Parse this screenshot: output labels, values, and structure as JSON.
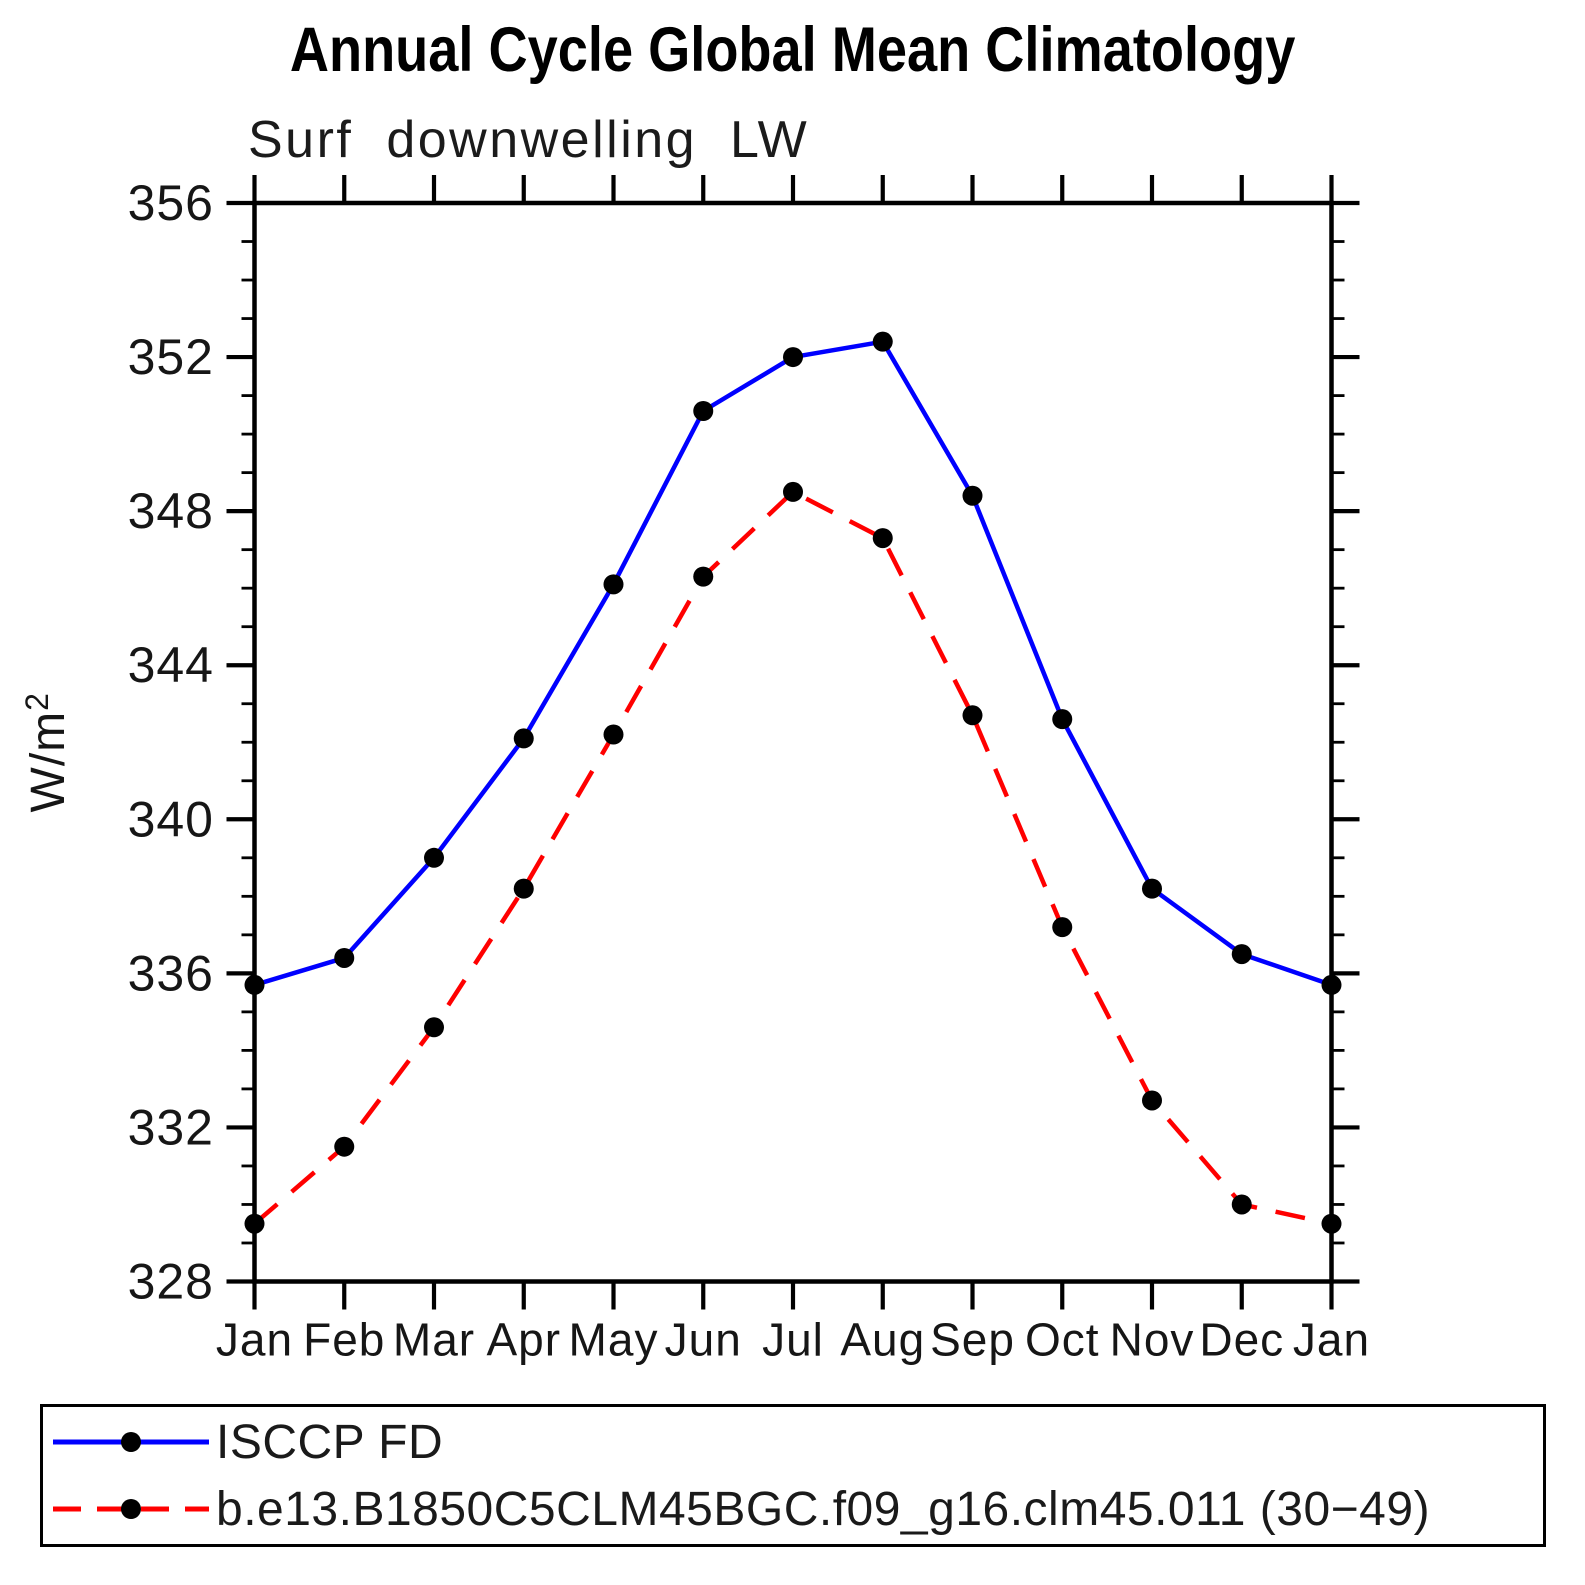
{
  "chart_data": {
    "type": "line",
    "title": "Annual Cycle Global Mean Climatology",
    "subtitle": "Surf downwelling LW",
    "ylabel": "W/m²",
    "categories": [
      "Jan",
      "Feb",
      "Mar",
      "Apr",
      "May",
      "Jun",
      "Jul",
      "Aug",
      "Sep",
      "Oct",
      "Nov",
      "Dec",
      "Jan"
    ],
    "ylim": [
      328,
      356
    ],
    "ytick_major": [
      328,
      332,
      336,
      340,
      344,
      348,
      352,
      356
    ],
    "ytick_minor_step": 1,
    "grid": "off",
    "legend_position": "bottom",
    "axis_color": "#000000",
    "marker_color": "#000000",
    "series": [
      {
        "name": "ISCCP FD",
        "color": "#0000ff",
        "line_style": "solid",
        "marker": "circle",
        "values": [
          335.7,
          336.4,
          339.0,
          342.1,
          346.1,
          350.6,
          352.0,
          352.4,
          348.4,
          342.6,
          338.2,
          336.5,
          335.7
        ]
      },
      {
        "name": "b.e13.B1850C5CLM45BGC.f09_g16.clm45.011 (30−49)",
        "color": "#ff0000",
        "line_style": "dashed",
        "marker": "circle",
        "values": [
          329.5,
          331.5,
          334.6,
          338.2,
          342.2,
          346.3,
          348.5,
          347.3,
          342.7,
          337.2,
          332.7,
          330.0,
          329.5
        ]
      }
    ]
  }
}
